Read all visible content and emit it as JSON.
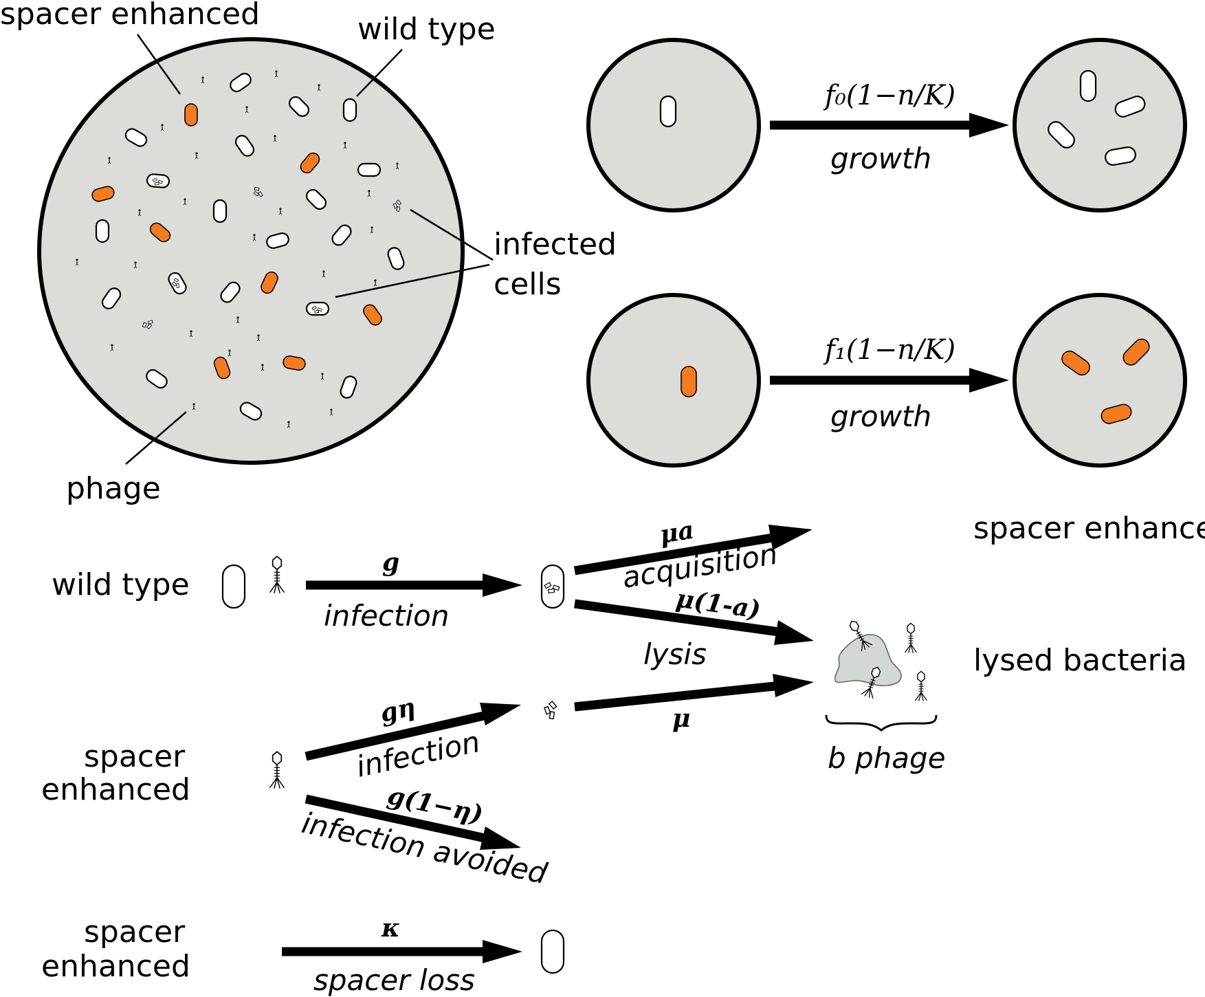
{
  "labels": {
    "spacer_enhanced_top": "spacer enhanced",
    "wild_type_top": "wild type",
    "infected_cells_1": "infected",
    "infected_cells_2": "cells",
    "phage": "phage"
  },
  "growth": {
    "rate0": "f₀(1−n/K)",
    "rate1": "f₁(1−n/K)",
    "label": "growth"
  },
  "reactions": {
    "wild_type": "wild type",
    "infection_rate": "g",
    "infection": "infection",
    "acquisition_rate": "μa",
    "acquisition": "acquisition",
    "spacer_enhanced_product": "spacer enhanced",
    "lysis_rate": "μ(1-a)",
    "lysis": "lysis",
    "lysed_bacteria": "lysed bacteria",
    "b_phage": "b phage",
    "spacer_enhanced_1a": "spacer",
    "spacer_enhanced_1b": "enhanced",
    "infection_eta_rate": "gη",
    "infection_eta": "infection",
    "mu_rate": "μ",
    "avoided_rate": "g(1−η)",
    "avoided": "infection avoided",
    "spacer_enhanced_2a": "spacer",
    "spacer_enhanced_2b": "enhanced",
    "kappa_rate": "κ",
    "spacer_loss": "spacer loss"
  },
  "colors": {
    "spacer_enhanced_cell": "#f47b20",
    "wild_type_cell": "#ffffff",
    "dish": "#dcdcd8",
    "lysed_cell": "#d4d8d4"
  }
}
